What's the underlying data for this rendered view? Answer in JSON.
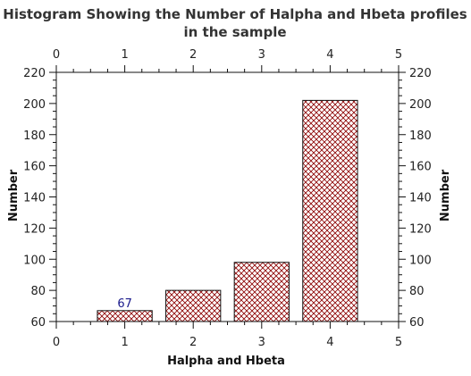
{
  "chart_data": {
    "type": "bar",
    "title": "Histogram Showing the Number of Halpha and Hbeta profiles in the sample",
    "title_lines": [
      "Histogram Showing the Number of Halpha and Hbeta profiles",
      "in the sample"
    ],
    "xlabel": "Halpha and Hbeta",
    "ylabel": "Number",
    "ylabel_right": "Number",
    "xlim": [
      0,
      5
    ],
    "ylim": [
      60,
      220
    ],
    "x_ticks": [
      "0",
      "1",
      "2",
      "3",
      "4",
      "5"
    ],
    "y_ticks": [
      "60",
      "80",
      "100",
      "120",
      "140",
      "160",
      "180",
      "200",
      "220"
    ],
    "categories": [
      1,
      2,
      3,
      4
    ],
    "values": [
      67,
      80,
      98,
      202
    ],
    "bar_width": 0.8,
    "data_labels": [
      {
        "category": 1,
        "text": "67"
      }
    ],
    "bar_fill": "crosshatch",
    "bar_color": "#8b0000",
    "label_color": "#1a1a8c",
    "grid": false,
    "legend": "none"
  }
}
